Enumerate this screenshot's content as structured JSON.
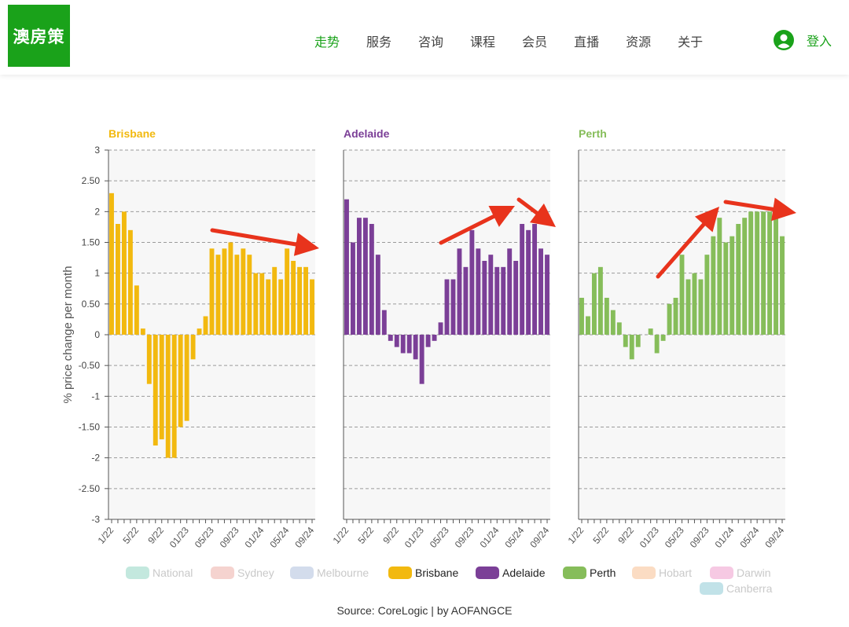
{
  "header": {
    "logo": "澳房策",
    "nav": [
      {
        "label": "走势",
        "active": true
      },
      {
        "label": "服务",
        "active": false
      },
      {
        "label": "咨询",
        "active": false
      },
      {
        "label": "课程",
        "active": false
      },
      {
        "label": "会员",
        "active": false
      },
      {
        "label": "直播",
        "active": false
      },
      {
        "label": "资源",
        "active": false
      },
      {
        "label": "关于",
        "active": false
      }
    ],
    "login_label": "登入",
    "accent_color": "#1aa21a"
  },
  "chart_data": {
    "type": "bar",
    "ylabel": "% price change per month",
    "ylim": [
      -3,
      3
    ],
    "yticks": [
      "3",
      "2.50",
      "2",
      "1.50",
      "1",
      "0.50",
      "0",
      "-0.50",
      "-1",
      "-1.50",
      "-2",
      "-2.50",
      "-3"
    ],
    "grid": "dashed horizontal",
    "x_tick_labels": [
      "1/22",
      "5/22",
      "9/22",
      "01/23",
      "05/23",
      "09/23",
      "01/24",
      "05/24",
      "09/24"
    ],
    "panels": [
      {
        "name": "Brisbane",
        "color": "#f2b90f",
        "values": [
          2.3,
          1.8,
          2.0,
          1.7,
          0.8,
          0.1,
          -0.8,
          -1.8,
          -1.7,
          -2.0,
          -2.0,
          -1.5,
          -1.4,
          -0.4,
          0.1,
          0.3,
          1.4,
          1.3,
          1.4,
          1.5,
          1.3,
          1.4,
          1.3,
          1.0,
          1.0,
          0.9,
          1.1,
          0.9,
          1.4,
          1.2,
          1.1,
          1.1,
          0.9
        ]
      },
      {
        "name": "Adelaide",
        "color": "#7b3f97",
        "values": [
          2.2,
          1.5,
          1.9,
          1.9,
          1.8,
          1.3,
          0.4,
          -0.1,
          -0.2,
          -0.3,
          -0.3,
          -0.4,
          -0.8,
          -0.2,
          -0.1,
          0.2,
          0.9,
          0.9,
          1.4,
          1.1,
          1.7,
          1.4,
          1.2,
          1.3,
          1.1,
          1.1,
          1.4,
          1.2,
          1.8,
          1.7,
          1.8,
          1.4,
          1.3
        ]
      },
      {
        "name": "Perth",
        "color": "#86bd5a",
        "values": [
          0.6,
          0.3,
          1.0,
          1.1,
          0.6,
          0.4,
          0.2,
          -0.2,
          -0.4,
          -0.2,
          0.0,
          0.1,
          -0.3,
          -0.1,
          0.5,
          0.6,
          1.3,
          0.9,
          1.0,
          0.9,
          1.3,
          1.6,
          1.9,
          1.5,
          1.6,
          1.8,
          1.9,
          2.0,
          2.0,
          2.0,
          2.0,
          1.9,
          1.6
        ]
      }
    ],
    "legend": [
      {
        "name": "National",
        "color": "#c3e8de",
        "active": false
      },
      {
        "name": "Sydney",
        "color": "#f5d3cf",
        "active": false
      },
      {
        "name": "Melbourne",
        "color": "#d3dcec",
        "active": false
      },
      {
        "name": "Brisbane",
        "color": "#f2b90f",
        "active": true
      },
      {
        "name": "Adelaide",
        "color": "#7b3f97",
        "active": true
      },
      {
        "name": "Perth",
        "color": "#86bd5a",
        "active": true
      },
      {
        "name": "Hobart",
        "color": "#fbdcc3",
        "active": false
      },
      {
        "name": "Darwin",
        "color": "#f6c9e3",
        "active": false
      },
      {
        "name": "Canberra",
        "color": "#c1e2e8",
        "active": false
      }
    ],
    "legend_placement": "bottom",
    "annotation_color": "#e8331c"
  },
  "source": "Source: CoreLogic | by AOFANGCE"
}
